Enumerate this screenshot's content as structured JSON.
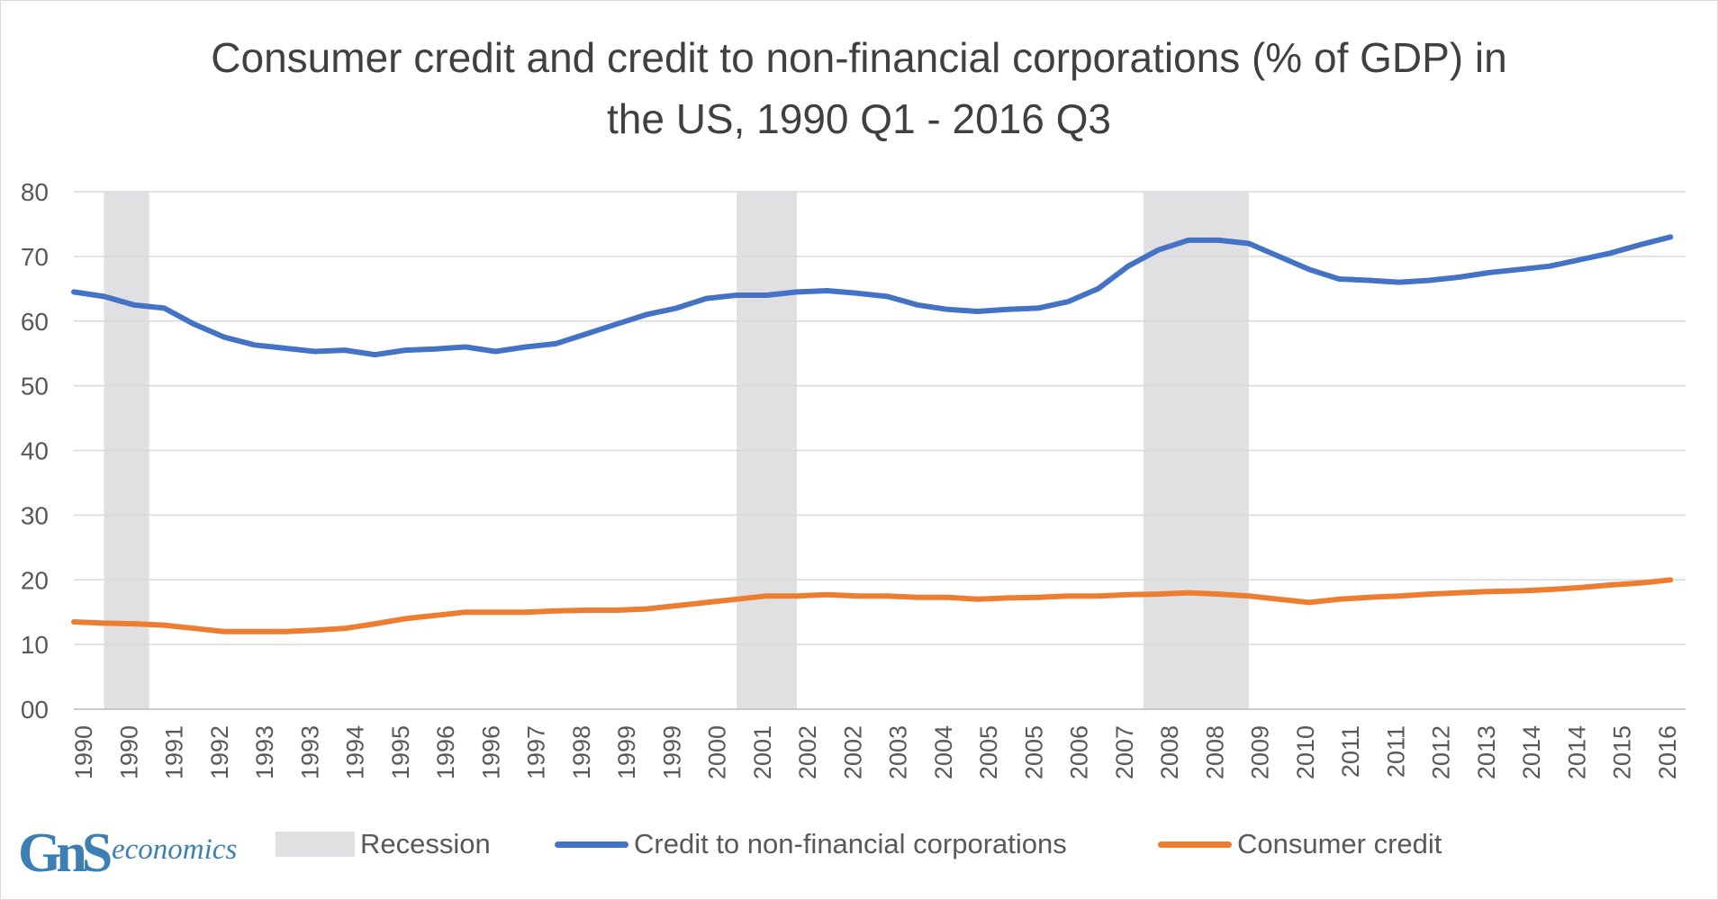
{
  "chart_data": {
    "type": "line",
    "title": "Consumer credit and credit to non-financial corporations (% of GDP) in the US, 1990 Q1 - 2016 Q3",
    "xlabel": "",
    "ylabel": "",
    "ylim": [
      0,
      80
    ],
    "y_ticks": [
      "00",
      "10",
      "20",
      "30",
      "40",
      "50",
      "60",
      "70",
      "80"
    ],
    "x_tick_labels": [
      "1990",
      "1990",
      "1991",
      "1992",
      "1993",
      "1993",
      "1994",
      "1995",
      "1996",
      "1996",
      "1997",
      "1998",
      "1999",
      "1999",
      "2000",
      "2001",
      "2002",
      "2002",
      "2003",
      "2004",
      "2005",
      "2005",
      "2006",
      "2007",
      "2008",
      "2008",
      "2009",
      "2010",
      "2011",
      "2011",
      "2012",
      "2013",
      "2014",
      "2014",
      "2015",
      "2016"
    ],
    "grid": true,
    "legend_position": "bottom",
    "recessions": [
      {
        "start": 1990.5,
        "end": 1991.25
      },
      {
        "start": 2001.0,
        "end": 2002.0
      },
      {
        "start": 2007.75,
        "end": 2009.5
      }
    ],
    "series": [
      {
        "name": "Credit to non-financial corporations",
        "color": "#4472c4",
        "x": [
          1990.0,
          1990.5,
          1991.0,
          1991.5,
          1992.0,
          1992.5,
          1993.0,
          1993.5,
          1994.0,
          1994.5,
          1995.0,
          1995.5,
          1996.0,
          1996.5,
          1997.0,
          1997.5,
          1998.0,
          1998.5,
          1999.0,
          1999.5,
          2000.0,
          2000.5,
          2001.0,
          2001.5,
          2002.0,
          2002.5,
          2003.0,
          2003.5,
          2004.0,
          2004.5,
          2005.0,
          2005.5,
          2006.0,
          2006.5,
          2007.0,
          2007.5,
          2008.0,
          2008.5,
          2009.0,
          2009.5,
          2010.0,
          2010.5,
          2011.0,
          2011.5,
          2012.0,
          2012.5,
          2013.0,
          2013.5,
          2014.0,
          2014.5,
          2015.0,
          2015.5,
          2016.0,
          2016.5
        ],
        "values": [
          64.5,
          63.8,
          62.5,
          62.0,
          59.5,
          57.5,
          56.3,
          55.8,
          55.3,
          55.5,
          54.8,
          55.5,
          55.7,
          56.0,
          55.3,
          56.0,
          56.5,
          58.0,
          59.5,
          61.0,
          62.0,
          63.5,
          64.0,
          64.0,
          64.5,
          64.7,
          64.3,
          63.8,
          62.5,
          61.8,
          61.5,
          61.8,
          62.0,
          63.0,
          65.0,
          68.5,
          71.0,
          72.5,
          72.5,
          72.0,
          70.0,
          68.0,
          66.5,
          66.3,
          66.0,
          66.3,
          66.8,
          67.5,
          68.0,
          68.5,
          69.5,
          70.5,
          71.8,
          73.0
        ]
      },
      {
        "name": "Consumer credit",
        "color": "#ed7d31",
        "x": [
          1990.0,
          1990.5,
          1991.0,
          1991.5,
          1992.0,
          1992.5,
          1993.0,
          1993.5,
          1994.0,
          1994.5,
          1995.0,
          1995.5,
          1996.0,
          1996.5,
          1997.0,
          1997.5,
          1998.0,
          1998.5,
          1999.0,
          1999.5,
          2000.0,
          2000.5,
          2001.0,
          2001.5,
          2002.0,
          2002.5,
          2003.0,
          2003.5,
          2004.0,
          2004.5,
          2005.0,
          2005.5,
          2006.0,
          2006.5,
          2007.0,
          2007.5,
          2008.0,
          2008.5,
          2009.0,
          2009.5,
          2010.0,
          2010.5,
          2011.0,
          2011.5,
          2012.0,
          2012.5,
          2013.0,
          2013.5,
          2014.0,
          2014.5,
          2015.0,
          2015.5,
          2016.0,
          2016.5
        ],
        "values": [
          13.5,
          13.3,
          13.2,
          13.0,
          12.5,
          12.0,
          12.0,
          12.0,
          12.2,
          12.5,
          13.2,
          14.0,
          14.5,
          15.0,
          15.0,
          15.0,
          15.2,
          15.3,
          15.3,
          15.5,
          16.0,
          16.5,
          17.0,
          17.5,
          17.5,
          17.7,
          17.5,
          17.5,
          17.3,
          17.3,
          17.0,
          17.2,
          17.3,
          17.5,
          17.5,
          17.7,
          17.8,
          18.0,
          17.8,
          17.5,
          17.0,
          16.5,
          17.0,
          17.3,
          17.5,
          17.8,
          18.0,
          18.2,
          18.3,
          18.5,
          18.8,
          19.2,
          19.5,
          20.0
        ]
      }
    ],
    "legend": [
      {
        "label": "Recession",
        "kind": "area",
        "color": "#e0e0e2"
      },
      {
        "label": "Credit to non-financial corporations",
        "kind": "line",
        "color": "#4472c4"
      },
      {
        "label": "Consumer credit",
        "kind": "line",
        "color": "#ed7d31"
      }
    ]
  },
  "branding": {
    "logo_letters": "GnS",
    "logo_word": "economics",
    "logo_color": "#3e7fb3"
  }
}
